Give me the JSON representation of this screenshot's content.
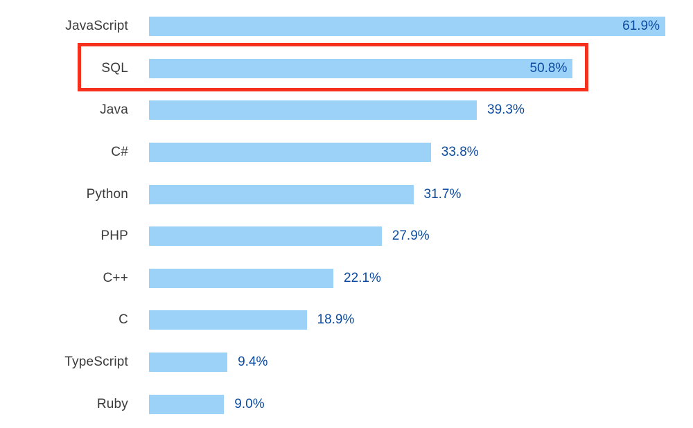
{
  "chart_data": {
    "type": "bar",
    "orientation": "horizontal",
    "title": "",
    "xlabel": "",
    "ylabel": "",
    "grid": false,
    "legend": null,
    "xlim": [
      0,
      65
    ],
    "categories": [
      "JavaScript",
      "SQL",
      "Java",
      "C#",
      "Python",
      "PHP",
      "C++",
      "C",
      "TypeScript",
      "Ruby"
    ],
    "values": [
      61.9,
      50.8,
      39.3,
      33.8,
      31.7,
      27.9,
      22.1,
      18.9,
      9.4,
      9.0
    ],
    "value_labels": [
      "61.9%",
      "50.8%",
      "39.3%",
      "33.8%",
      "31.7%",
      "27.9%",
      "22.1%",
      "18.9%",
      "9.4%",
      "9.0%"
    ],
    "value_label_inside": [
      true,
      true,
      false,
      false,
      false,
      false,
      false,
      false,
      false,
      false
    ],
    "highlighted_category": "SQL",
    "colors": {
      "bar": "#9CD2F8",
      "value_text": "#0B4A9E",
      "category_text": "#3B3B3B",
      "highlight_border": "#F5301D",
      "background": "#FFFFFF"
    }
  }
}
